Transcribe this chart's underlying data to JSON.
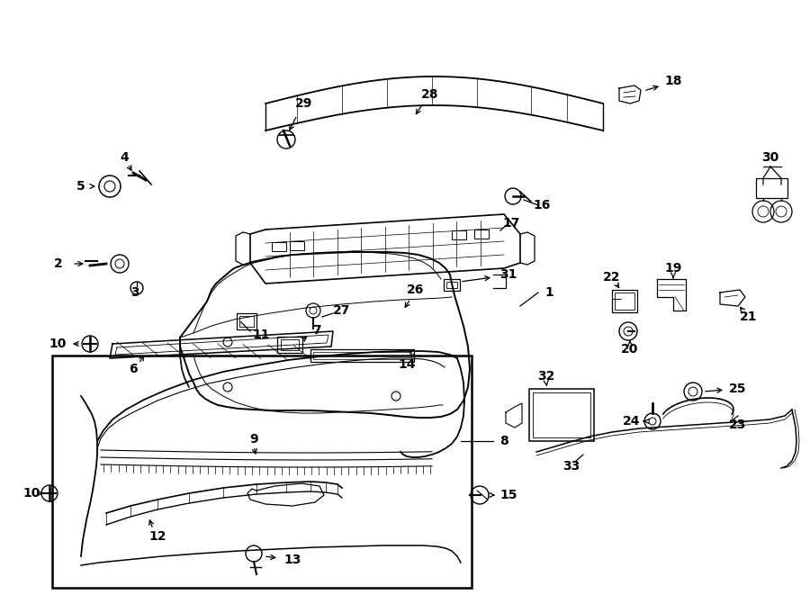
{
  "bg_color": "#ffffff",
  "line_color": "#000000",
  "fig_width": 9.0,
  "fig_height": 6.61,
  "dpi": 100,
  "label_fs": 10
}
